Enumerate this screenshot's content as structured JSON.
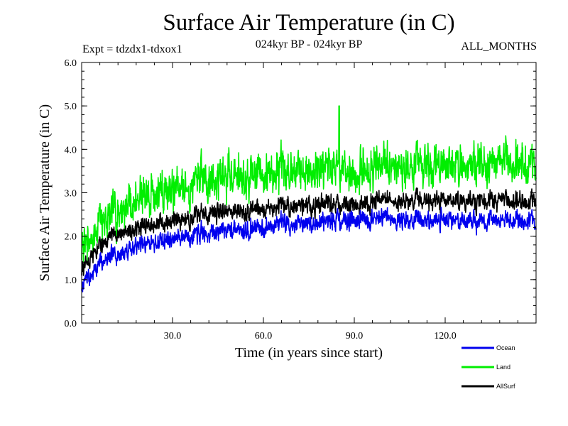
{
  "chart_data": {
    "type": "line",
    "title": "Surface Air Temperature (in C)",
    "subtitle": "024kyr BP - 024kyr BP",
    "experiment": "Expt = tdzdx1-tdxox1",
    "months": "ALL_MONTHS",
    "xlabel": "Time (in years since start)",
    "ylabel": "Surface Air Temperature (in C)",
    "xlim": [
      0,
      150
    ],
    "ylim": [
      0.0,
      6.0
    ],
    "xticks": [
      30,
      60,
      90,
      120
    ],
    "xtick_labels": [
      "30.0",
      "60.0",
      "90.0",
      "120.0"
    ],
    "yticks": [
      0,
      1,
      2,
      3,
      4,
      5,
      6
    ],
    "ytick_labels": [
      "0.0",
      "1.0",
      "2.0",
      "3.0",
      "4.0",
      "5.0",
      "6.0"
    ],
    "series": [
      {
        "name": "Land",
        "color": "#00ee00",
        "trend_x": [
          0,
          5,
          10,
          20,
          30,
          40,
          50,
          60,
          70,
          80,
          90,
          100,
          110,
          120,
          130,
          140,
          150
        ],
        "trend_y": [
          1.7,
          2.2,
          2.5,
          2.9,
          3.1,
          3.3,
          3.4,
          3.45,
          3.5,
          3.6,
          3.55,
          3.6,
          3.65,
          3.7,
          3.65,
          3.75,
          3.7
        ],
        "amplitude": 0.45,
        "peak": {
          "x": 85,
          "y": 5.0
        }
      },
      {
        "name": "AllSurf",
        "color": "#000000",
        "trend_x": [
          0,
          5,
          10,
          20,
          30,
          40,
          50,
          60,
          70,
          80,
          90,
          100,
          110,
          120,
          130,
          140,
          150
        ],
        "trend_y": [
          1.2,
          1.7,
          2.0,
          2.2,
          2.35,
          2.5,
          2.6,
          2.65,
          2.7,
          2.75,
          2.75,
          2.8,
          2.8,
          2.85,
          2.8,
          2.85,
          2.8
        ],
        "amplitude": 0.2
      },
      {
        "name": "Ocean",
        "color": "#0000ee",
        "trend_x": [
          0,
          5,
          10,
          20,
          30,
          40,
          50,
          60,
          70,
          80,
          90,
          100,
          110,
          120,
          130,
          140,
          150
        ],
        "trend_y": [
          0.85,
          1.3,
          1.55,
          1.8,
          1.95,
          2.05,
          2.15,
          2.2,
          2.3,
          2.35,
          2.4,
          2.4,
          2.35,
          2.4,
          2.35,
          2.4,
          2.35
        ],
        "amplitude": 0.2
      }
    ],
    "legend": [
      {
        "name": "Ocean",
        "color": "#0000ee"
      },
      {
        "name": "Land",
        "color": "#00ee00"
      },
      {
        "name": "AllSurf",
        "color": "#000000"
      }
    ]
  }
}
